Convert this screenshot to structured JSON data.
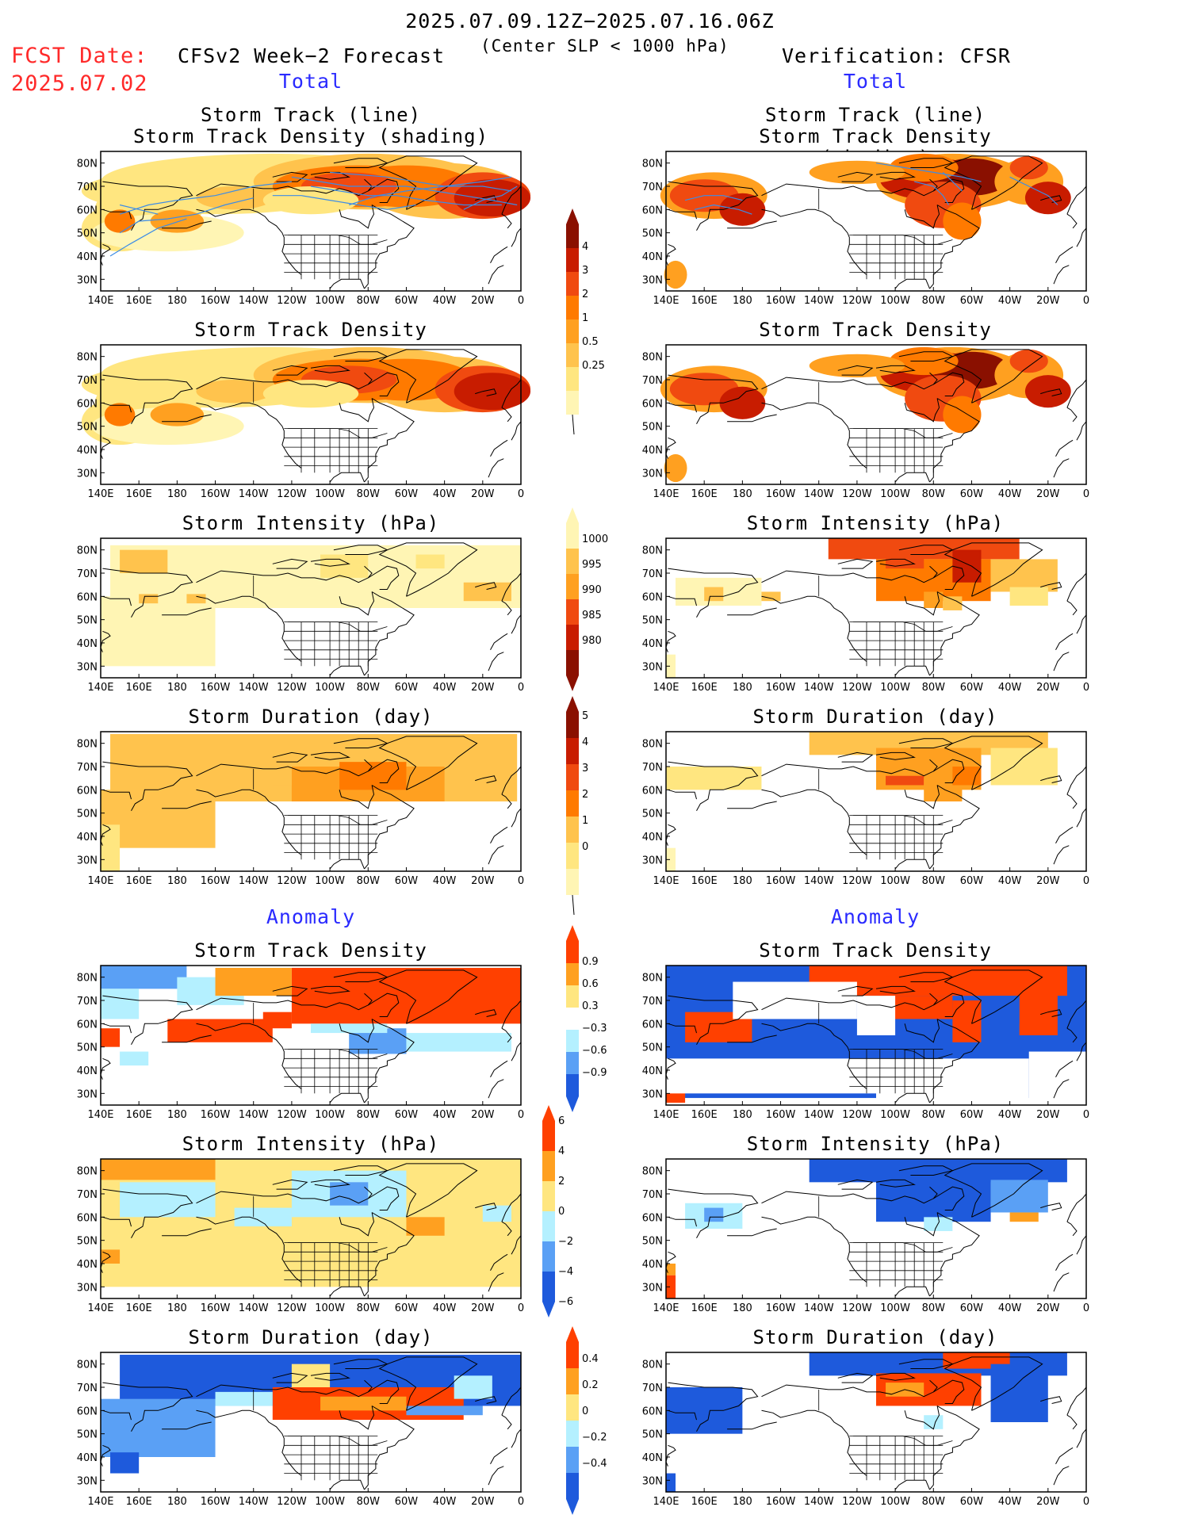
{
  "header": {
    "date_range": "2025.07.09.12Z−2025.07.16.06Z",
    "fcst_label": "FCST Date:",
    "fcst_date": "2025.07.02",
    "forecast_title": "CFSv2 Week−2 Forecast",
    "criterion": "(Center SLP < 1000 hPa)",
    "verification": "Verification: CFSR",
    "total_left": "Total",
    "total_right": "Total",
    "anomaly_left": "Anomaly",
    "anomaly_right": "Anomaly"
  },
  "panels": {
    "row1_title_line1": "Storm Track (line)",
    "row1_title_line2": "Storm Track Density (shading)",
    "row2_title": "Storm Track Density",
    "row3_title": "Storm Intensity (hPa)",
    "row4_title": "Storm Duration (day)",
    "row5_title": "Storm Track Density",
    "row6_title": "Storm Intensity (hPa)",
    "row7_title": "Storm Duration (day)"
  },
  "axes": {
    "x_ticks": [
      "140E",
      "160E",
      "180",
      "160W",
      "140W",
      "120W",
      "100W",
      "80W",
      "60W",
      "40W",
      "20W",
      "0"
    ],
    "y_ticks": [
      "80N",
      "70N",
      "60N",
      "50N",
      "40N",
      "30N"
    ]
  },
  "colorbars": {
    "density_total": [
      "4",
      "3",
      "2",
      "1",
      "0.5",
      "0.25"
    ],
    "intensity_total": [
      "1000",
      "995",
      "990",
      "985",
      "980"
    ],
    "duration_total": [
      "5",
      "4",
      "3",
      "2",
      "1",
      "0"
    ],
    "density_anomaly": [
      "0.9",
      "0.6",
      "0.3",
      "−0.3",
      "−0.6",
      "−0.9"
    ],
    "intensity_anomaly": [
      "6",
      "4",
      "2",
      "0",
      "−2",
      "−4",
      "−6"
    ],
    "duration_anomaly": [
      "0.4",
      "0.2",
      "0",
      "−0.2",
      "−0.4"
    ]
  },
  "colors": {
    "total_scale": [
      "#fff5b4",
      "#ffe680",
      "#ffc34d",
      "#ffa020",
      "#ff7a00",
      "#f04a10",
      "#c81c00",
      "#8a1000"
    ],
    "anomaly_pos": [
      "#ffe680",
      "#ffa020",
      "#ff4000"
    ],
    "anomaly_neg": [
      "#b4f0ff",
      "#5aa0f5",
      "#1e5adc"
    ],
    "track_line": "#3c8ce6"
  }
}
